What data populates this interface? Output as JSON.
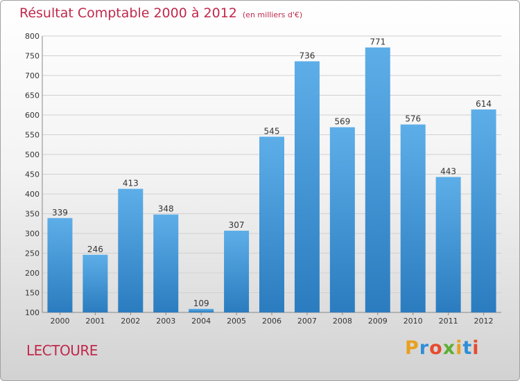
{
  "header": {
    "title": "Résultat Comptable 2000 à 2012",
    "unit": "(en milliers d'€)"
  },
  "footer": {
    "city": "LECTOURE",
    "logo_letters": [
      "P",
      "r",
      "o",
      "x",
      "i",
      "t",
      "i"
    ],
    "logo_colors": [
      "#e8a020",
      "#2f8ed8",
      "#e64c2e",
      "#5cb030",
      "#e8a020",
      "#2f8ed8",
      "#e64c2e"
    ]
  },
  "colors": {
    "bar_top": "#5daee8",
    "bar_bottom": "#2b7cbf",
    "title": "#c0284b",
    "grid": "#d0d0d0"
  },
  "chart_data": {
    "type": "bar",
    "title": "Résultat Comptable 2000 à 2012",
    "subtitle": "(en milliers d'€)",
    "categories": [
      "2000",
      "2001",
      "2002",
      "2003",
      "2004",
      "2005",
      "2006",
      "2007",
      "2008",
      "2009",
      "2010",
      "2011",
      "2012"
    ],
    "values": [
      339,
      246,
      413,
      348,
      109,
      307,
      545,
      736,
      569,
      771,
      576,
      443,
      614
    ],
    "ylim": [
      100,
      800
    ],
    "yticks": [
      100,
      150,
      200,
      250,
      300,
      350,
      400,
      450,
      500,
      550,
      600,
      650,
      700,
      750,
      800
    ],
    "grid": true,
    "legend": "none"
  }
}
